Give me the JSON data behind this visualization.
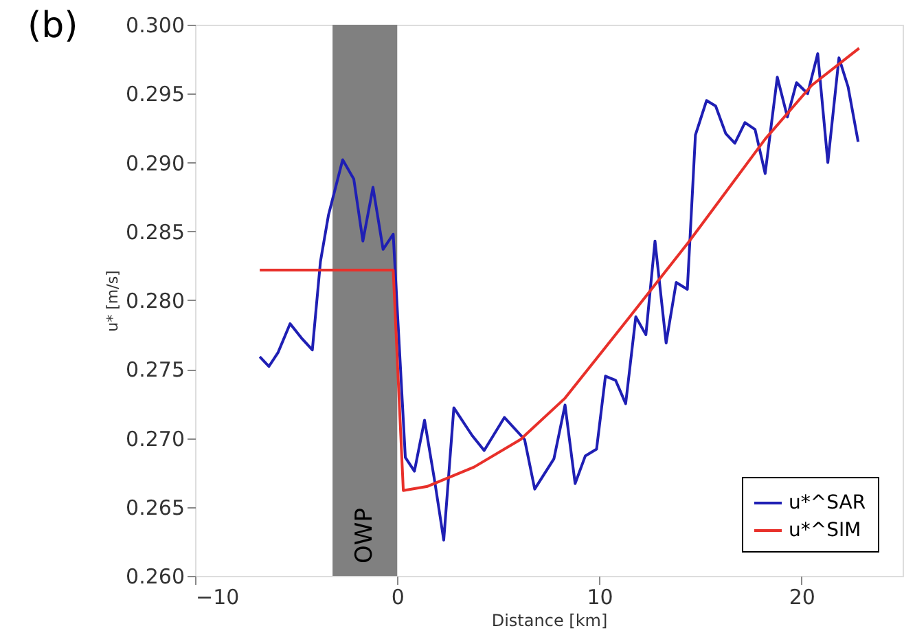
{
  "chart_data": {
    "type": "line",
    "xlabel": "Distance [km]",
    "ylabel": "u* [m/s]",
    "annotations": [
      "(b)"
    ],
    "xlim": [
      -10,
      25
    ],
    "xticks": [
      -10,
      0,
      10,
      20
    ],
    "ylim": [
      0.26,
      0.3
    ],
    "yticks": [
      {
        "value": 0.26,
        "label": "0.260"
      },
      {
        "value": 0.265,
        "label": "0.265"
      },
      {
        "value": 0.27,
        "label": "0.270"
      },
      {
        "value": 0.275,
        "label": "0.275"
      },
      {
        "value": 0.28,
        "label": "0.280"
      },
      {
        "value": 0.285,
        "label": "0.285"
      },
      {
        "value": 0.29,
        "label": "0.290"
      },
      {
        "value": 0.295,
        "label": "0.295"
      },
      {
        "value": 0.3,
        "label": "0.300"
      }
    ],
    "grid": false,
    "legend": "bottom right",
    "marker": "none",
    "line_style": "solid",
    "bands": [
      {
        "axis": "x",
        "from": -3.2,
        "to": 0,
        "label": "OWP",
        "color": "#808080"
      }
    ],
    "series": [
      {
        "name": "u*^SAR",
        "color": "#1f1fb4",
        "x": [
          -6.8,
          -6.35,
          -5.9,
          -5.3,
          -4.7,
          -4.2,
          -3.8,
          -3.4,
          -2.7,
          -2.15,
          -1.7,
          -1.2,
          -0.7,
          -0.2,
          0.4,
          0.85,
          1.35,
          1.85,
          2.3,
          2.8,
          3.7,
          4.3,
          5.3,
          6.3,
          6.8,
          7.75,
          8.3,
          8.8,
          9.3,
          9.86,
          10.3,
          10.8,
          11.3,
          11.8,
          12.3,
          12.75,
          13.3,
          13.8,
          14.35,
          14.75,
          15.3,
          15.75,
          16.25,
          16.7,
          17.2,
          17.7,
          18.2,
          18.8,
          19.3,
          19.75,
          20.3,
          20.8,
          21.3,
          21.85,
          22.3,
          22.8
        ],
        "values": [
          0.2759,
          0.2752,
          0.2762,
          0.2783,
          0.2772,
          0.2764,
          0.2828,
          0.2862,
          0.2902,
          0.2888,
          0.2843,
          0.2882,
          0.2837,
          0.2848,
          0.2686,
          0.2676,
          0.2713,
          0.2669,
          0.2626,
          0.2722,
          0.2702,
          0.2691,
          0.2715,
          0.2699,
          0.2663,
          0.2685,
          0.2724,
          0.2667,
          0.2687,
          0.2692,
          0.2745,
          0.2742,
          0.2725,
          0.2788,
          0.2775,
          0.2843,
          0.2769,
          0.2813,
          0.2808,
          0.292,
          0.2945,
          0.2941,
          0.2921,
          0.2914,
          0.2929,
          0.2924,
          0.2892,
          0.2962,
          0.2933,
          0.2958,
          0.295,
          0.2979,
          0.29,
          0.2976,
          0.2955,
          0.2915
        ]
      },
      {
        "name": "u*^SIM",
        "color": "#e8302a",
        "x": [
          -6.8,
          -0.2,
          0.3,
          1.5,
          3.8,
          6.1,
          8.3,
          11.5,
          14.4,
          18.2,
          20.5,
          22.85
        ],
        "values": [
          0.2822,
          0.2822,
          0.2662,
          0.2665,
          0.2679,
          0.2699,
          0.2729,
          0.2788,
          0.2842,
          0.2917,
          0.2956,
          0.2983
        ]
      }
    ]
  }
}
